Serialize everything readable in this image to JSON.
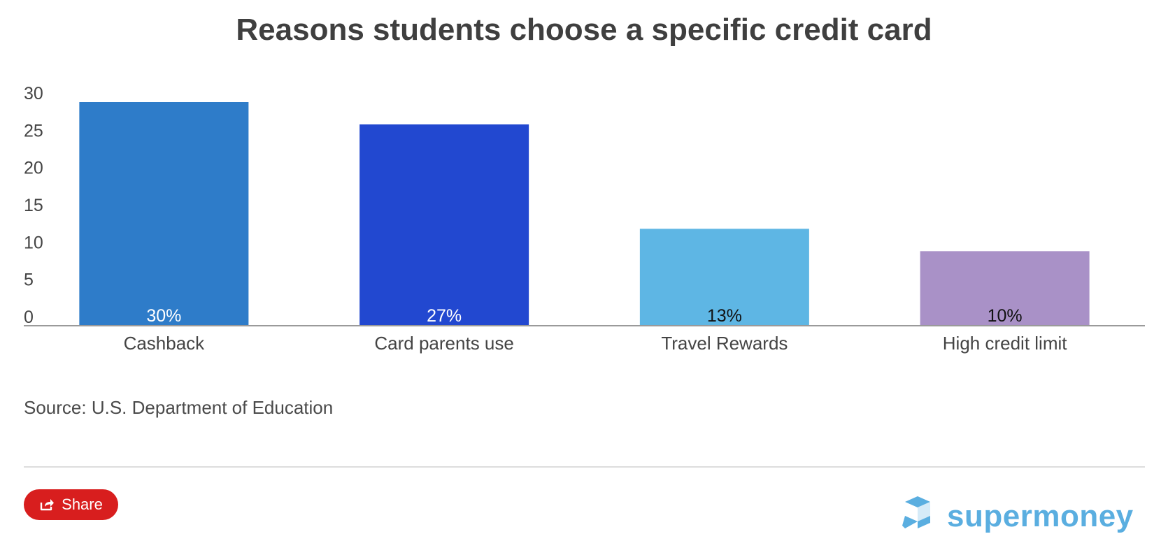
{
  "title": "Reasons students choose a specific credit card",
  "source": "Source: U.S. Department of Education",
  "share": {
    "label": "Share",
    "icon": "share-icon"
  },
  "logo": {
    "text": "supermoney",
    "icon": "supermoney-logo-icon"
  },
  "colors": {
    "cashback": "#2e7cc9",
    "card_parents_use": "#2248d0",
    "travel_rewards": "#5eb6e4",
    "high_credit_limit": "#a991c7",
    "brand": "#5aaee0",
    "share_button": "#d81e1e"
  },
  "chart_data": {
    "type": "bar",
    "title": "Reasons students choose a specific credit card",
    "categories": [
      "Cashback",
      "Card parents use",
      "Travel Rewards",
      "High credit limit"
    ],
    "values": [
      30,
      27,
      13,
      10
    ],
    "data_labels": [
      "30%",
      "27%",
      "13%",
      "10%"
    ],
    "bar_colors": [
      "#2e7cc9",
      "#2248d0",
      "#5eb6e4",
      "#a991c7"
    ],
    "label_colors": [
      "#ffffff",
      "#ffffff",
      "#111111",
      "#111111"
    ],
    "yticks": [
      0,
      5,
      10,
      15,
      20,
      25,
      30
    ],
    "ylim": [
      0,
      30
    ],
    "xlabel": "",
    "ylabel": "",
    "grid": false,
    "legend": "none"
  }
}
